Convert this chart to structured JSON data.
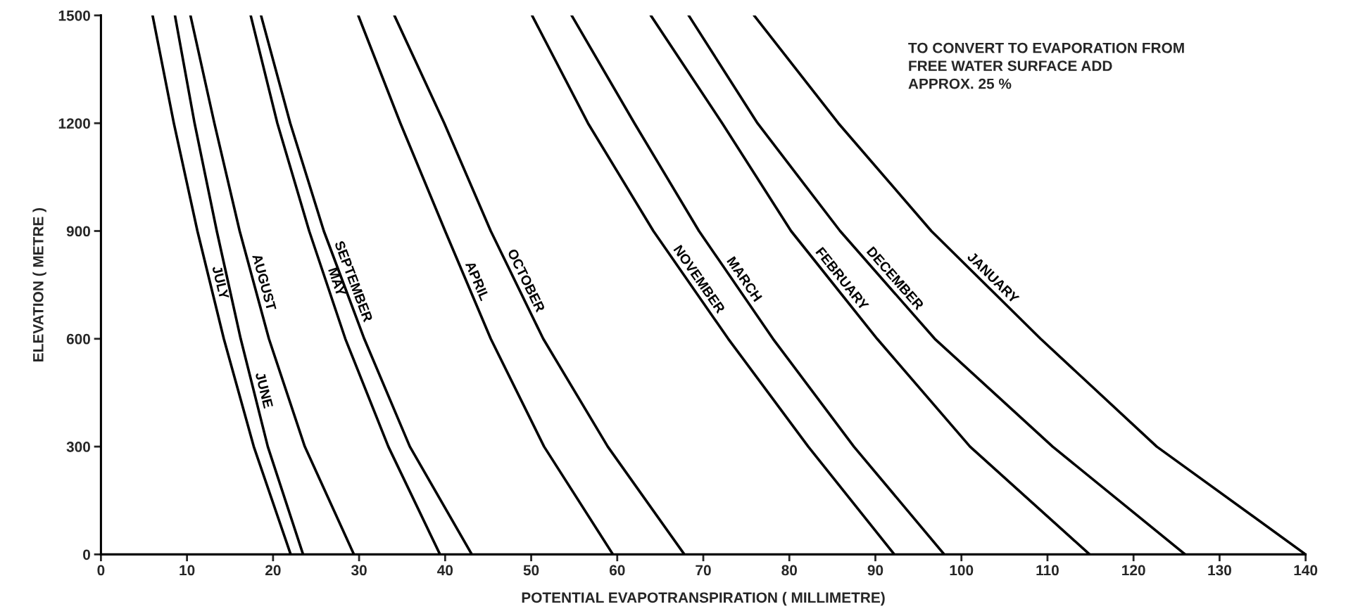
{
  "chart_data": {
    "type": "line",
    "xlabel": "POTENTIAL EVAPOTRANSPIRATION ( MILLIMETRE)",
    "ylabel": "ELEVATION ( METRE )",
    "annotations": [
      "TO CONVERT TO EVAPORATION FROM\nFREE WATER SURFACE ADD\nAPPROX. 25 %"
    ],
    "xlim": [
      0,
      140
    ],
    "xticks": [
      0,
      10,
      20,
      30,
      40,
      50,
      60,
      70,
      80,
      90,
      100,
      110,
      120,
      130,
      140
    ],
    "ylim": [
      0,
      1500
    ],
    "yticks": [
      0,
      300,
      600,
      900,
      1200,
      1500
    ],
    "grid": false,
    "legend": false,
    "marker": "none",
    "line_style": "solid",
    "series": [
      {
        "name": "JULY",
        "color": "#000000",
        "x": [
          22.05,
          17.76,
          14.28,
          11.21,
          8.47,
          6.0
        ],
        "values": [
          0,
          300,
          600,
          900,
          1200,
          1500
        ]
      },
      {
        "name": "JUNE",
        "color": "#000000",
        "x": [
          23.49,
          19.39,
          16.24,
          13.46,
          10.88,
          8.6
        ],
        "values": [
          0,
          300,
          600,
          900,
          1200,
          1500
        ]
      },
      {
        "name": "AUGUST",
        "color": "#000000",
        "x": [
          29.4,
          23.69,
          19.52,
          16.12,
          13.18,
          10.4
        ],
        "values": [
          0,
          300,
          600,
          900,
          1200,
          1500
        ]
      },
      {
        "name": "MAY",
        "color": "#000000",
        "x": [
          39.4,
          33.4,
          28.4,
          24.2,
          20.5,
          17.4
        ],
        "values": [
          0,
          300,
          600,
          900,
          1200,
          1500
        ]
      },
      {
        "name": "SEPTEMBER",
        "color": "#000000",
        "x": [
          43.1,
          35.9,
          30.6,
          25.9,
          22.0,
          18.6
        ],
        "values": [
          0,
          300,
          600,
          900,
          1200,
          1500
        ]
      },
      {
        "name": "APRIL",
        "color": "#000000",
        "x": [
          59.5,
          51.5,
          45.3,
          40.0,
          34.8,
          29.9
        ],
        "values": [
          0,
          300,
          600,
          900,
          1200,
          1500
        ]
      },
      {
        "name": "OCTOBER",
        "color": "#000000",
        "x": [
          67.8,
          58.9,
          51.4,
          45.3,
          39.9,
          34.1
        ],
        "values": [
          0,
          300,
          600,
          900,
          1200,
          1500
        ]
      },
      {
        "name": "NOVEMBER",
        "color": "#000000",
        "x": [
          92.2,
          82.2,
          72.9,
          64.2,
          56.6,
          50.1
        ],
        "values": [
          0,
          300,
          600,
          900,
          1200,
          1500
        ]
      },
      {
        "name": "MARCH",
        "color": "#000000",
        "x": [
          98.0,
          87.5,
          78.1,
          69.5,
          62.0,
          54.7
        ],
        "values": [
          0,
          300,
          600,
          900,
          1200,
          1500
        ]
      },
      {
        "name": "FEBRUARY",
        "color": "#000000",
        "x": [
          114.9,
          101.0,
          90.2,
          80.2,
          72.2,
          63.9
        ],
        "values": [
          0,
          300,
          600,
          900,
          1200,
          1500
        ]
      },
      {
        "name": "DECEMBER",
        "color": "#000000",
        "x": [
          126.0,
          110.6,
          96.9,
          85.9,
          76.3,
          68.3
        ],
        "values": [
          0,
          300,
          600,
          900,
          1200,
          1500
        ]
      },
      {
        "name": "JANUARY",
        "color": "#000000",
        "x": [
          140.0,
          122.7,
          109.2,
          96.5,
          85.7,
          75.9
        ],
        "values": [
          0,
          300,
          600,
          900,
          1200,
          1500
        ]
      }
    ]
  }
}
